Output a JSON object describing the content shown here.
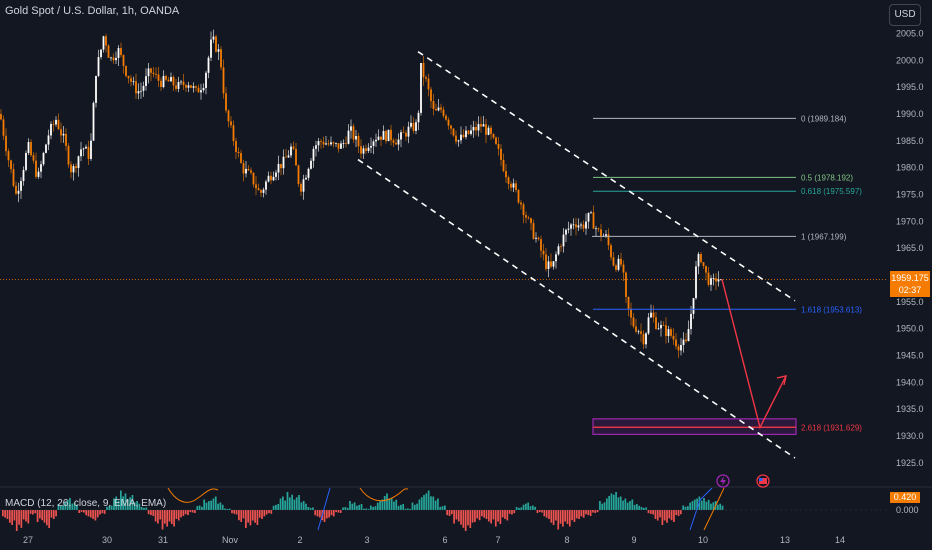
{
  "header": {
    "title": "Gold Spot / U.S. Dollar, 1h, OANDA",
    "currency_button": "USD"
  },
  "price_tag": {
    "price": "1959.175",
    "countdown": "02:37"
  },
  "macd": {
    "label": "MACD (12, 26, close, 9, EMA, EMA)",
    "value": "0.420",
    "zero_label": "0.000"
  },
  "events": {
    "lightning_icon": "lightning-icon",
    "flag_icon": "us-flag-icon"
  },
  "colors": {
    "background": "#131722",
    "bull": "#ffffff",
    "bear": "#f57c00",
    "fib_0": "#b2b5be",
    "fib_05": "#81c784",
    "fib_0618": "#26a69a",
    "fib_1": "#b2b5be",
    "fib_1618": "#2962ff",
    "fib_2618": "#f23645",
    "zone": "#9c27b0",
    "projection": "#f23645",
    "channel": "#ffffff",
    "current_price_line": "#f57c00",
    "macd_pos": "#26a69a",
    "macd_neg": "#ef5350"
  },
  "chart_data": {
    "type": "candlestick",
    "symbol": "XAUUSD",
    "timeframe": "1h",
    "x_ticks": [
      "27",
      "30",
      "31",
      "Nov",
      "2",
      "3",
      "6",
      "7",
      "8",
      "9",
      "10",
      "13",
      "14"
    ],
    "y_ticks": [
      1925.0,
      1930.0,
      1935.0,
      1940.0,
      1945.0,
      1950.0,
      1955.0,
      1960.0,
      1965.0,
      1970.0,
      1975.0,
      1980.0,
      1985.0,
      1990.0,
      1995.0,
      2000.0,
      2005.0
    ],
    "ylim": [
      1920.5,
      2007.5
    ],
    "current_price": 1959.175,
    "close_path": [
      [
        0,
        1990
      ],
      [
        8,
        1982
      ],
      [
        16,
        1975
      ],
      [
        22,
        1979
      ],
      [
        28,
        1984
      ],
      [
        38,
        1978
      ],
      [
        48,
        1986
      ],
      [
        56,
        1989
      ],
      [
        64,
        1985
      ],
      [
        72,
        1979
      ],
      [
        82,
        1984
      ],
      [
        90,
        1982
      ],
      [
        96,
        1998
      ],
      [
        100,
        2001
      ],
      [
        104,
        2005
      ],
      [
        110,
        2000
      ],
      [
        118,
        2002
      ],
      [
        126,
        1998
      ],
      [
        134,
        1995
      ],
      [
        140,
        1994
      ],
      [
        150,
        1998
      ],
      [
        160,
        1996
      ],
      [
        170,
        1996
      ],
      [
        178,
        1995
      ],
      [
        188,
        1996
      ],
      [
        196,
        1994
      ],
      [
        204,
        1996
      ],
      [
        212,
        2004
      ],
      [
        220,
        2001
      ],
      [
        226,
        1990
      ],
      [
        234,
        1985
      ],
      [
        242,
        1980
      ],
      [
        252,
        1978
      ],
      [
        260,
        1975
      ],
      [
        268,
        1978
      ],
      [
        276,
        1980
      ],
      [
        284,
        1981
      ],
      [
        292,
        1984
      ],
      [
        300,
        1976
      ],
      [
        306,
        1979
      ],
      [
        314,
        1984
      ],
      [
        322,
        1985
      ],
      [
        332,
        1984
      ],
      [
        342,
        1984
      ],
      [
        350,
        1987
      ],
      [
        356,
        1985
      ],
      [
        362,
        1983
      ],
      [
        370,
        1985
      ],
      [
        378,
        1986
      ],
      [
        388,
        1986
      ],
      [
        398,
        1985
      ],
      [
        408,
        1987
      ],
      [
        418,
        1988
      ],
      [
        420,
        1999
      ],
      [
        426,
        1996
      ],
      [
        434,
        1990
      ],
      [
        442,
        1991
      ],
      [
        450,
        1988
      ],
      [
        458,
        1985
      ],
      [
        466,
        1986
      ],
      [
        474,
        1987
      ],
      [
        482,
        1988
      ],
      [
        490,
        1986
      ],
      [
        498,
        1983
      ],
      [
        506,
        1979
      ],
      [
        514,
        1976
      ],
      [
        522,
        1973
      ],
      [
        530,
        1969
      ],
      [
        538,
        1966
      ],
      [
        546,
        1962
      ],
      [
        552,
        1961
      ],
      [
        558,
        1965
      ],
      [
        566,
        1968
      ],
      [
        574,
        1970
      ],
      [
        582,
        1969
      ],
      [
        590,
        1971
      ],
      [
        598,
        1968
      ],
      [
        606,
        1967
      ],
      [
        614,
        1962
      ],
      [
        622,
        1962
      ],
      [
        626,
        1955
      ],
      [
        632,
        1951
      ],
      [
        638,
        1950
      ],
      [
        644,
        1948
      ],
      [
        650,
        1953
      ],
      [
        656,
        1951
      ],
      [
        662,
        1950
      ],
      [
        670,
        1949
      ],
      [
        678,
        1947
      ],
      [
        686,
        1947
      ],
      [
        692,
        1954
      ],
      [
        696,
        1961
      ],
      [
        700,
        1964
      ],
      [
        706,
        1960
      ],
      [
        712,
        1958
      ],
      [
        718,
        1960
      ],
      [
        722,
        1959.2
      ]
    ],
    "fib_levels": [
      {
        "label": "0 (1989.184)",
        "value": 1989.184
      },
      {
        "label": "0.5 (1978.192)",
        "value": 1978.192
      },
      {
        "label": "0.618 (1975.597)",
        "value": 1975.597
      },
      {
        "label": "1 (1967.199)",
        "value": 1967.199
      },
      {
        "label": "1.618 (1953.613)",
        "value": 1953.613
      },
      {
        "label": "2.618 (1931.629)",
        "value": 1931.629
      }
    ],
    "target_zone": [
      1930.3,
      1933.2
    ],
    "channel": {
      "upper": [
        [
          418,
          2001.6
        ],
        [
          795,
          1955.2
        ]
      ],
      "lower": [
        [
          358,
          1981.5
        ],
        [
          795,
          1925.9
        ]
      ]
    },
    "projection": [
      [
        722,
        1959.2
      ],
      [
        760,
        1931.6
      ],
      [
        786,
        1941.2
      ]
    ],
    "macd_histogram": [
      -0.6,
      -1.0,
      -1.4,
      -0.9,
      -0.3,
      -0.8,
      -1.2,
      -0.6,
      0.4,
      0.8,
      0.5,
      -0.2,
      -0.5,
      -0.7,
      -0.3,
      0.3,
      0.9,
      1.3,
      1.0,
      0.6,
      0.2,
      -0.4,
      -0.9,
      -1.3,
      -1.1,
      -0.7,
      -0.4,
      -0.2,
      0.3,
      0.7,
      0.9,
      0.5,
      0.1,
      -0.3,
      -0.8,
      -1.2,
      -1.0,
      -0.6,
      -0.3,
      0.4,
      0.9,
      1.2,
      1.0,
      0.6,
      0.2,
      -0.5,
      -0.8,
      -0.5,
      -0.2,
      0.2,
      0.6,
      0.4,
      0.1,
      0.3,
      0.7,
      1.1,
      0.8,
      0.4,
      0.1,
      0.5,
      1.0,
      1.3,
      0.9,
      0.3,
      -0.4,
      -0.9,
      -1.4,
      -1.2,
      -0.8,
      -0.6,
      -0.9,
      -1.1,
      -0.7,
      -0.3,
      0.2,
      0.5,
      0.3,
      -0.2,
      -0.6,
      -1.0,
      -1.3,
      -1.1,
      -0.8,
      -0.6,
      -0.4,
      -0.2,
      0.6,
      1.1,
      1.2,
      0.9,
      0.7,
      0.4,
      0.2,
      -0.3,
      -0.7,
      -1.0,
      -0.8,
      -0.4,
      0.3,
      0.7,
      0.9,
      0.8,
      0.6,
      0.42
    ]
  }
}
